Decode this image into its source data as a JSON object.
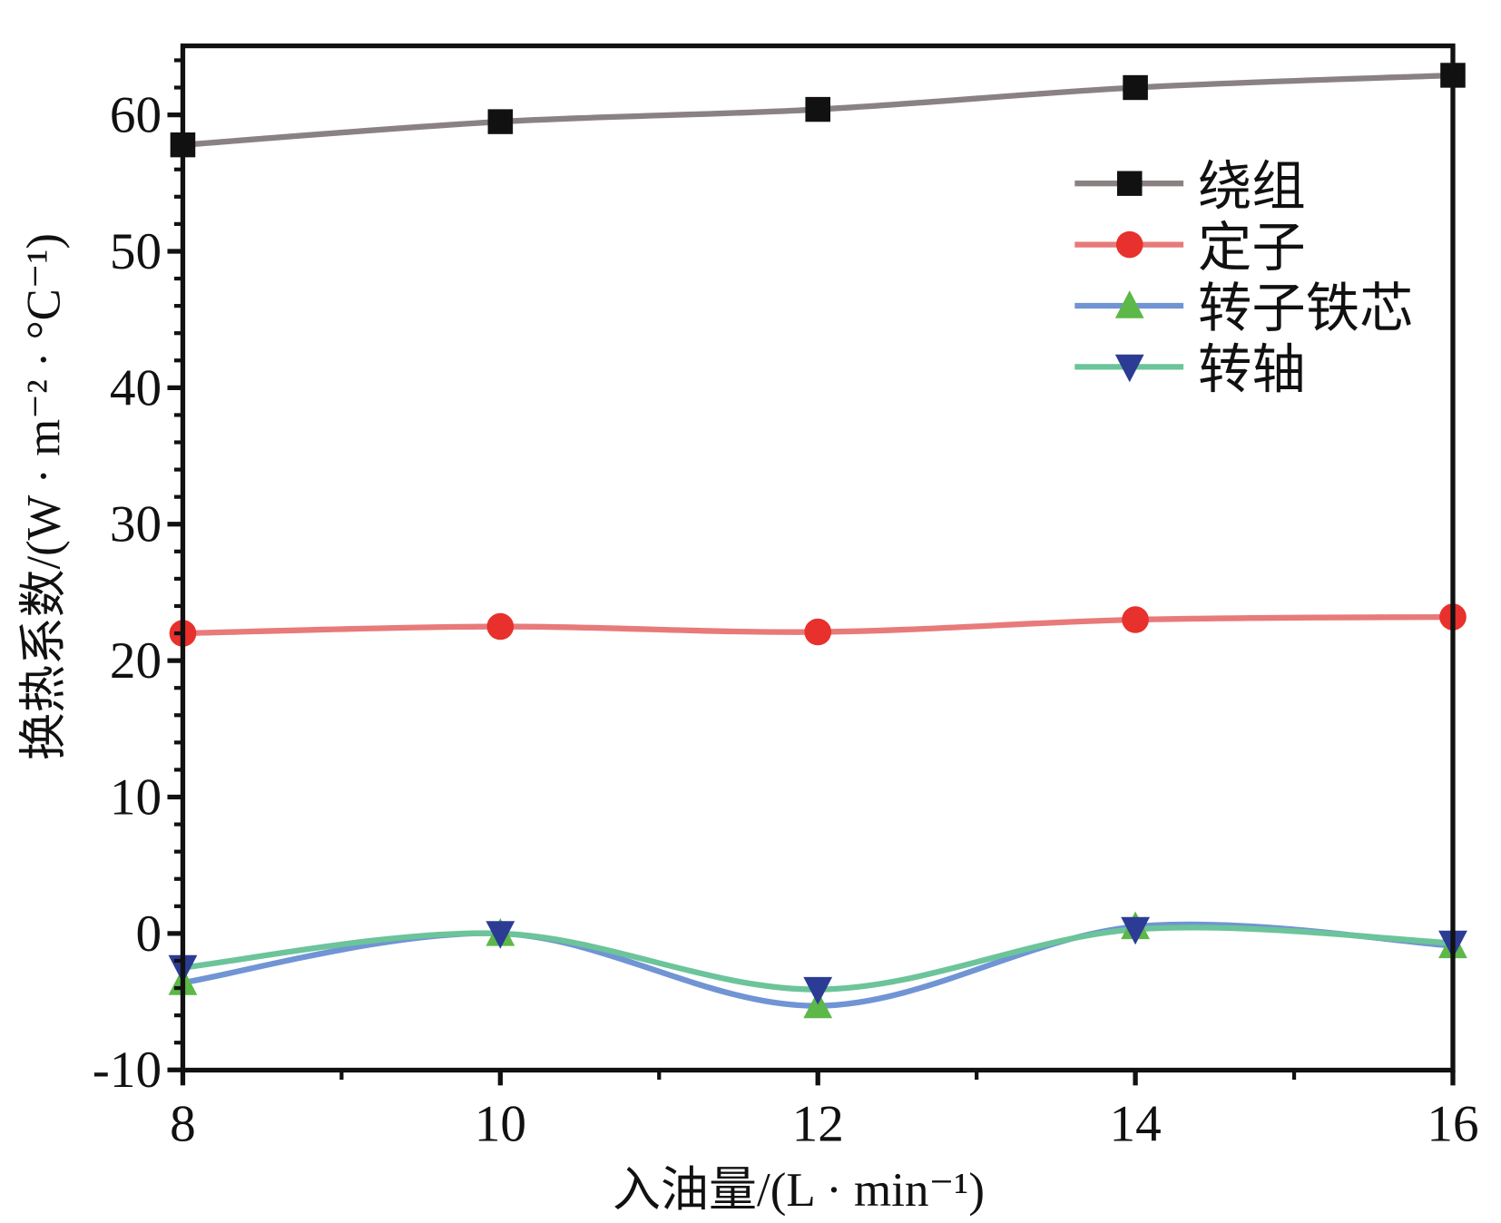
{
  "chart_data": {
    "type": "line",
    "title": "",
    "xlabel": "入油量/(L · min⁻¹)",
    "ylabel": "换热系数/(W · m⁻² · °C⁻¹)",
    "xlim": [
      8,
      16
    ],
    "ylim": [
      -10,
      65
    ],
    "xticks": [
      8,
      10,
      12,
      14,
      16
    ],
    "yticks": [
      -10,
      0,
      10,
      20,
      30,
      40,
      50,
      60
    ],
    "x": [
      8,
      10,
      12,
      14,
      16
    ],
    "grid": false,
    "legend_position": "top-right",
    "series": [
      {
        "name": "绕组",
        "values": [
          57.8,
          59.5,
          60.4,
          62.0,
          62.9
        ],
        "marker": "square",
        "line_color": "#8a8282",
        "marker_color": "#111111"
      },
      {
        "name": "定子",
        "values": [
          22.0,
          22.5,
          22.1,
          23.0,
          23.2
        ],
        "marker": "circle",
        "line_color": "#e87a7a",
        "marker_color": "#e8302c"
      },
      {
        "name": "转子铁芯",
        "values": [
          -3.6,
          0.0,
          -5.3,
          0.5,
          -0.9
        ],
        "marker": "triangle-up",
        "line_color": "#7094d4",
        "marker_color": "#5cb848"
      },
      {
        "name": "转轴",
        "values": [
          -2.5,
          0.0,
          -4.1,
          0.3,
          -0.7
        ],
        "marker": "triangle-down",
        "line_color": "#6cc49a",
        "marker_color": "#2c3c94"
      }
    ]
  }
}
